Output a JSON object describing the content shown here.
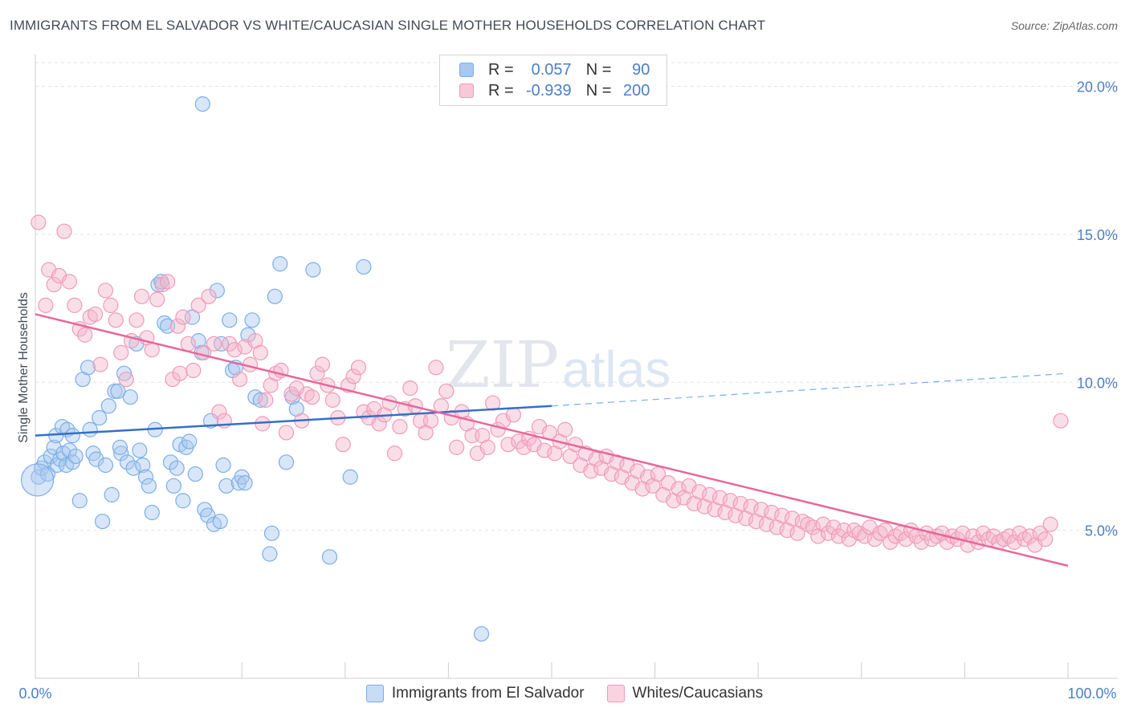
{
  "title": "IMMIGRANTS FROM EL SALVADOR VS WHITE/CAUCASIAN SINGLE MOTHER HOUSEHOLDS CORRELATION CHART",
  "source": "Source: ZipAtlas.com",
  "watermark": {
    "zip": "ZIP",
    "atlas": "atlas"
  },
  "legend": {
    "rows": [
      {
        "r_label": "R =",
        "r_value": "0.057",
        "n_label": "N =",
        "n_value": "90",
        "color": "#a9c8ef"
      },
      {
        "r_label": "R =",
        "r_value": "-0.939",
        "n_label": "N =",
        "n_value": "200",
        "color": "#f4b6c9"
      }
    ]
  },
  "bottom_legend": [
    {
      "label": "Immigrants from El Salvador",
      "color": "#a9c8ef"
    },
    {
      "label": "Whites/Caucasians",
      "color": "#f4b6c9"
    }
  ],
  "chart_data": {
    "type": "scatter",
    "title": "IMMIGRANTS FROM EL SALVADOR VS WHITE/CAUCASIAN SINGLE MOTHER HOUSEHOLDS CORRELATION CHART",
    "xlabel": "",
    "ylabel": "Single Mother Households",
    "xlim": [
      0,
      100
    ],
    "ylim": [
      0,
      20.8
    ],
    "x_tick_labels": [
      "0.0%",
      "100.0%"
    ],
    "y_ticks": [
      5,
      10,
      15,
      20
    ],
    "y_tick_labels": [
      "5.0%",
      "10.0%",
      "15.0%",
      "20.0%"
    ],
    "grid": true,
    "legend_position": "top-center",
    "series": [
      {
        "name": "Immigrants from El Salvador",
        "color": "#7aaee8",
        "trend": {
          "x": [
            0,
            50
          ],
          "y": [
            8.2,
            9.2
          ],
          "dashed_extension": {
            "x": [
              50,
              100
            ],
            "y": [
              9.2,
              10.3
            ]
          },
          "color": "#3370c8"
        },
        "points": [
          [
            0.3,
            6.8
          ],
          [
            0.6,
            7.1
          ],
          [
            0.9,
            7.3
          ],
          [
            1.2,
            6.9
          ],
          [
            1.5,
            7.5
          ],
          [
            1.8,
            7.8
          ],
          [
            2.1,
            7.2
          ],
          [
            2.4,
            7.4
          ],
          [
            2.7,
            7.6
          ],
          [
            3.0,
            7.2
          ],
          [
            3.3,
            7.7
          ],
          [
            3.6,
            7.3
          ],
          [
            2.0,
            8.2
          ],
          [
            2.6,
            8.5
          ],
          [
            3.1,
            8.4
          ],
          [
            3.6,
            8.2
          ],
          [
            3.9,
            7.5
          ],
          [
            4.3,
            6.0
          ],
          [
            4.6,
            10.1
          ],
          [
            5.1,
            10.5
          ],
          [
            5.3,
            8.4
          ],
          [
            5.6,
            7.6
          ],
          [
            5.9,
            7.4
          ],
          [
            6.2,
            8.8
          ],
          [
            6.5,
            5.3
          ],
          [
            6.8,
            7.2
          ],
          [
            7.1,
            9.2
          ],
          [
            7.4,
            6.2
          ],
          [
            7.7,
            9.7
          ],
          [
            8.0,
            9.7
          ],
          [
            8.3,
            7.6
          ],
          [
            8.6,
            10.3
          ],
          [
            8.9,
            7.3
          ],
          [
            9.2,
            9.5
          ],
          [
            9.5,
            7.1
          ],
          [
            9.8,
            11.3
          ],
          [
            10.1,
            7.7
          ],
          [
            10.4,
            7.2
          ],
          [
            10.7,
            6.8
          ],
          [
            11.0,
            6.5
          ],
          [
            11.3,
            5.6
          ],
          [
            11.6,
            8.4
          ],
          [
            11.9,
            13.3
          ],
          [
            12.2,
            13.4
          ],
          [
            12.5,
            12.0
          ],
          [
            12.8,
            11.9
          ],
          [
            13.1,
            7.3
          ],
          [
            13.4,
            6.5
          ],
          [
            13.7,
            7.1
          ],
          [
            14.0,
            7.9
          ],
          [
            14.3,
            6.0
          ],
          [
            14.6,
            7.8
          ],
          [
            14.9,
            8.0
          ],
          [
            15.2,
            12.2
          ],
          [
            15.5,
            6.9
          ],
          [
            15.8,
            11.4
          ],
          [
            16.1,
            11.0
          ],
          [
            16.4,
            5.7
          ],
          [
            16.7,
            5.5
          ],
          [
            17.0,
            8.7
          ],
          [
            17.3,
            5.2
          ],
          [
            17.6,
            13.1
          ],
          [
            17.9,
            5.3
          ],
          [
            18.2,
            7.2
          ],
          [
            18.5,
            6.5
          ],
          [
            18.8,
            12.1
          ],
          [
            19.1,
            10.4
          ],
          [
            19.4,
            10.5
          ],
          [
            19.7,
            6.6
          ],
          [
            20.0,
            6.8
          ],
          [
            20.3,
            6.6
          ],
          [
            20.6,
            11.6
          ],
          [
            21.3,
            9.5
          ],
          [
            21.8,
            9.4
          ],
          [
            22.7,
            4.2
          ],
          [
            22.9,
            4.9
          ],
          [
            23.2,
            12.9
          ],
          [
            23.7,
            14.0
          ],
          [
            24.3,
            7.3
          ],
          [
            24.9,
            9.5
          ],
          [
            25.3,
            9.1
          ],
          [
            26.9,
            13.8
          ],
          [
            28.5,
            4.1
          ],
          [
            30.5,
            6.8
          ],
          [
            31.8,
            13.9
          ],
          [
            16.2,
            19.4
          ],
          [
            43.2,
            1.5
          ],
          [
            21.0,
            12.1
          ],
          [
            18.0,
            11.3
          ],
          [
            8.2,
            7.8
          ]
        ]
      },
      {
        "name": "Whites/Caucasians",
        "color": "#f09ab8",
        "trend": {
          "x": [
            0,
            100
          ],
          "y": [
            12.3,
            3.8
          ],
          "color": "#e8679a"
        },
        "points": [
          [
            0.3,
            15.4
          ],
          [
            1.0,
            12.6
          ],
          [
            1.3,
            13.8
          ],
          [
            1.8,
            13.3
          ],
          [
            2.3,
            13.6
          ],
          [
            2.8,
            15.1
          ],
          [
            3.3,
            13.4
          ],
          [
            3.8,
            12.6
          ],
          [
            4.3,
            11.8
          ],
          [
            4.8,
            11.6
          ],
          [
            5.3,
            12.2
          ],
          [
            5.8,
            12.3
          ],
          [
            6.3,
            10.6
          ],
          [
            6.8,
            13.1
          ],
          [
            7.3,
            12.6
          ],
          [
            7.8,
            12.1
          ],
          [
            8.3,
            11.0
          ],
          [
            8.8,
            10.1
          ],
          [
            9.3,
            11.4
          ],
          [
            9.8,
            12.1
          ],
          [
            10.3,
            12.9
          ],
          [
            10.8,
            11.5
          ],
          [
            11.3,
            11.1
          ],
          [
            11.8,
            12.8
          ],
          [
            12.3,
            13.3
          ],
          [
            12.8,
            13.4
          ],
          [
            13.3,
            10.1
          ],
          [
            13.8,
            11.9
          ],
          [
            14.3,
            12.2
          ],
          [
            14.8,
            11.3
          ],
          [
            15.3,
            10.4
          ],
          [
            15.8,
            12.6
          ],
          [
            16.3,
            11.0
          ],
          [
            16.8,
            12.9
          ],
          [
            17.3,
            11.3
          ],
          [
            17.8,
            9.0
          ],
          [
            18.3,
            8.7
          ],
          [
            18.8,
            11.3
          ],
          [
            19.3,
            11.1
          ],
          [
            19.8,
            10.1
          ],
          [
            20.3,
            11.2
          ],
          [
            20.8,
            10.6
          ],
          [
            21.3,
            11.4
          ],
          [
            21.8,
            11.0
          ],
          [
            22.3,
            9.4
          ],
          [
            22.8,
            9.9
          ],
          [
            23.3,
            10.3
          ],
          [
            23.8,
            10.4
          ],
          [
            24.3,
            8.3
          ],
          [
            24.8,
            9.6
          ],
          [
            25.3,
            9.8
          ],
          [
            25.8,
            8.7
          ],
          [
            26.3,
            9.6
          ],
          [
            26.8,
            9.5
          ],
          [
            27.3,
            10.3
          ],
          [
            27.8,
            10.6
          ],
          [
            28.3,
            9.9
          ],
          [
            28.8,
            9.4
          ],
          [
            29.3,
            8.8
          ],
          [
            29.8,
            7.9
          ],
          [
            30.3,
            9.9
          ],
          [
            30.8,
            10.2
          ],
          [
            31.3,
            10.5
          ],
          [
            31.8,
            9.0
          ],
          [
            32.3,
            8.8
          ],
          [
            32.8,
            9.1
          ],
          [
            33.3,
            8.6
          ],
          [
            33.8,
            8.9
          ],
          [
            34.3,
            9.3
          ],
          [
            34.8,
            7.6
          ],
          [
            35.3,
            8.5
          ],
          [
            35.8,
            9.1
          ],
          [
            36.3,
            9.8
          ],
          [
            36.8,
            9.2
          ],
          [
            37.3,
            8.7
          ],
          [
            37.8,
            8.3
          ],
          [
            38.3,
            8.7
          ],
          [
            38.8,
            10.5
          ],
          [
            39.3,
            9.2
          ],
          [
            39.8,
            9.7
          ],
          [
            40.3,
            8.8
          ],
          [
            40.8,
            7.8
          ],
          [
            41.3,
            9.0
          ],
          [
            41.8,
            8.6
          ],
          [
            42.3,
            8.2
          ],
          [
            42.8,
            7.6
          ],
          [
            43.3,
            8.2
          ],
          [
            43.8,
            7.8
          ],
          [
            44.3,
            9.3
          ],
          [
            44.8,
            8.4
          ],
          [
            45.3,
            8.7
          ],
          [
            45.8,
            7.9
          ],
          [
            46.3,
            8.9
          ],
          [
            46.8,
            8.0
          ],
          [
            47.3,
            7.8
          ],
          [
            47.8,
            8.1
          ],
          [
            48.3,
            7.9
          ],
          [
            48.8,
            8.5
          ],
          [
            49.3,
            7.7
          ],
          [
            49.8,
            8.3
          ],
          [
            50.3,
            7.6
          ],
          [
            50.8,
            8.0
          ],
          [
            51.3,
            8.4
          ],
          [
            51.8,
            7.5
          ],
          [
            52.3,
            7.9
          ],
          [
            52.8,
            7.2
          ],
          [
            53.3,
            7.6
          ],
          [
            53.8,
            7.0
          ],
          [
            54.3,
            7.4
          ],
          [
            54.8,
            7.1
          ],
          [
            55.3,
            7.5
          ],
          [
            55.8,
            6.9
          ],
          [
            56.3,
            7.3
          ],
          [
            56.8,
            6.8
          ],
          [
            57.3,
            7.2
          ],
          [
            57.8,
            6.6
          ],
          [
            58.3,
            7.0
          ],
          [
            58.8,
            6.4
          ],
          [
            59.3,
            6.8
          ],
          [
            59.8,
            6.5
          ],
          [
            60.3,
            6.9
          ],
          [
            60.8,
            6.2
          ],
          [
            61.3,
            6.6
          ],
          [
            61.8,
            6.0
          ],
          [
            62.3,
            6.4
          ],
          [
            62.8,
            6.1
          ],
          [
            63.3,
            6.5
          ],
          [
            63.8,
            5.9
          ],
          [
            64.3,
            6.3
          ],
          [
            64.8,
            5.8
          ],
          [
            65.3,
            6.2
          ],
          [
            65.8,
            5.7
          ],
          [
            66.3,
            6.1
          ],
          [
            66.8,
            5.6
          ],
          [
            67.3,
            6.0
          ],
          [
            67.8,
            5.5
          ],
          [
            68.3,
            5.9
          ],
          [
            68.8,
            5.4
          ],
          [
            69.3,
            5.8
          ],
          [
            69.8,
            5.3
          ],
          [
            70.3,
            5.7
          ],
          [
            70.8,
            5.2
          ],
          [
            71.3,
            5.6
          ],
          [
            71.8,
            5.1
          ],
          [
            72.3,
            5.5
          ],
          [
            72.8,
            5.0
          ],
          [
            73.3,
            5.4
          ],
          [
            73.8,
            4.9
          ],
          [
            74.3,
            5.3
          ],
          [
            74.8,
            5.2
          ],
          [
            75.3,
            5.1
          ],
          [
            75.8,
            4.8
          ],
          [
            76.3,
            5.2
          ],
          [
            76.8,
            4.9
          ],
          [
            77.3,
            5.1
          ],
          [
            77.8,
            4.8
          ],
          [
            78.3,
            5.0
          ],
          [
            78.8,
            4.7
          ],
          [
            79.3,
            5.0
          ],
          [
            79.8,
            4.9
          ],
          [
            80.3,
            4.8
          ],
          [
            80.8,
            5.1
          ],
          [
            81.3,
            4.7
          ],
          [
            81.8,
            4.9
          ],
          [
            82.3,
            5.0
          ],
          [
            82.8,
            4.6
          ],
          [
            83.3,
            4.8
          ],
          [
            83.8,
            4.9
          ],
          [
            84.3,
            4.7
          ],
          [
            84.8,
            5.0
          ],
          [
            85.3,
            4.8
          ],
          [
            85.8,
            4.6
          ],
          [
            86.3,
            4.9
          ],
          [
            86.8,
            4.7
          ],
          [
            87.3,
            4.8
          ],
          [
            87.8,
            4.9
          ],
          [
            88.3,
            4.6
          ],
          [
            88.8,
            4.8
          ],
          [
            89.3,
            4.7
          ],
          [
            89.8,
            4.9
          ],
          [
            90.3,
            4.5
          ],
          [
            90.8,
            4.8
          ],
          [
            91.3,
            4.6
          ],
          [
            91.8,
            4.9
          ],
          [
            92.3,
            4.7
          ],
          [
            92.8,
            4.8
          ],
          [
            93.3,
            4.6
          ],
          [
            93.8,
            4.7
          ],
          [
            94.3,
            4.8
          ],
          [
            94.8,
            4.6
          ],
          [
            95.3,
            4.9
          ],
          [
            95.8,
            4.7
          ],
          [
            96.3,
            4.8
          ],
          [
            96.8,
            4.5
          ],
          [
            97.3,
            4.9
          ],
          [
            97.8,
            4.7
          ],
          [
            98.3,
            5.2
          ],
          [
            99.3,
            8.7
          ],
          [
            14.0,
            10.3
          ],
          [
            22.0,
            8.6
          ]
        ]
      }
    ]
  }
}
